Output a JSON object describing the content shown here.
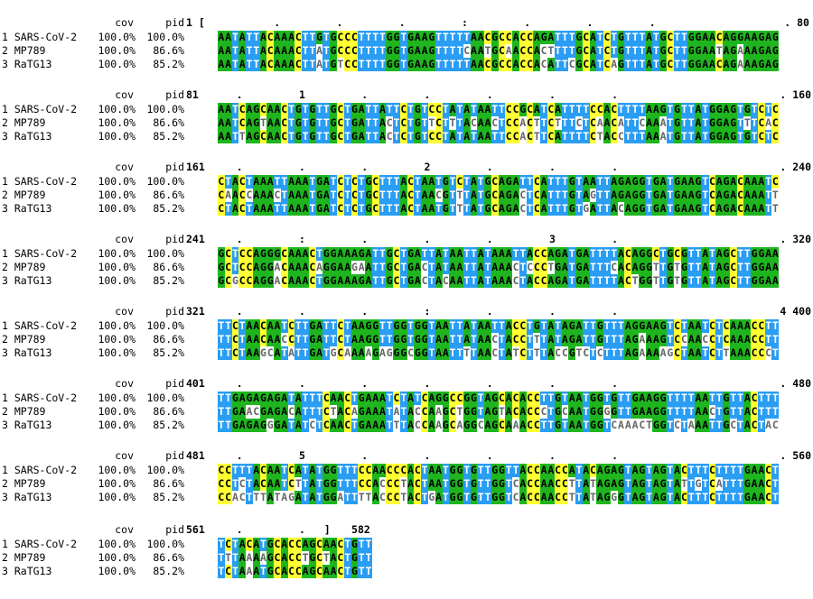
{
  "headers": {
    "cov": "cov",
    "pid": "pid"
  },
  "rows_meta": [
    {
      "label": "1 SARS-CoV-2",
      "cov": "100.0%",
      "pid": "100.0%"
    },
    {
      "label": "2 MP789",
      "cov": "100.0%",
      "pid": "86.6%"
    },
    {
      "label": "3 RaTG13",
      "cov": "100.0%",
      "pid": "85.2%"
    }
  ],
  "blocks": [
    {
      "start": "1 [",
      "ruler": "         .         .         .         :         .         .         .",
      "end": ". 80",
      "seqs": [
        "AATATTACAAACTTGTGCCCTTTTGGTGAAGTTTTTAACGCCACCAGATTTGCATCTGTTTATGCTTGGAACAGGAAGAG",
        "AATATTACAAACTTATGCCCTTTTGGTGAAGTTTTCAATGCAACCACTTTTGCATCTGTTTATGCTTGGAATAGAAAGAG",
        "AATATTACAAACTTATGTCCTTTTGGTGAAGTTTTTAACGCCACCACATTCGCATCAGTTTATGCTTGGAACAGAAAGAG"
      ]
    },
    {
      "start": "81",
      "ruler": "   .         1         .         .         .         .         .",
      "end": ". 160",
      "seqs": [
        "AATCAGCAACTGTGTTGCTGATTATTCTGTCCTATATAATTCCGCATCATTTTCCACTTTTAAGTGTTATGGAGTGTCTC",
        "AATCAGTAACTGTGTTGCTGATTACTCTGTTCTTTACAACTCCACTTCTTTCTCAACATTCAAATGTTATGGAGTTTCAC",
        "AATTAGCAACTGTGTTGCTGATTACTCTGTCCTATATAATTCCACTTCATTTTCTACCTTTAAATGTTATGGAGTGTCTC"
      ]
    },
    {
      "start": "161",
      "ruler": "   .         .         .         2         .         .         .",
      "end": ". 240",
      "seqs": [
        "CTACTAAATTAAATGATCTCTGCTTTACTAATGTCTATGCAGATTCATTTGTAATTAGAGGTGATGAAGTCAGACAAATC",
        "CAACCAAACTAAATGATCTCTGCTTTACTAACGTTTATGCAGACTCATTTGTAGTTAGAGGTGATGAAGTCAGACAAATT",
        "CTACTAAATTAAATGATCTCTGCTTTACTAATGTTTATGCAGACTCATTTGTGATTACAGGTGATGAAGTCAGACAAATT"
      ]
    },
    {
      "start": "241",
      "ruler": "   .         :         .         .         .         3         .",
      "end": ". 320",
      "seqs": [
        "GCTCCAGGGCAAACTGGAAAGATTGCTGATTATAATTATAAATTACCAGATGATTTTACAGGCTGCGTTATAGCTTGGAA",
        "GCTCCAGGACAAACAGGAAGAATTGCTGACTATAATTATAAACTCCCTGATGATTTCACAGGTTGTGTTATAGCTTGGAA",
        "GCGCCAGGACAAACTGGAAAGATTGCTGACTACAATTATAAACTACCAGATGATTTTACTGGTTGTGTTATAGCTTGGAA"
      ]
    },
    {
      "start": "321",
      "ruler": "   .         .         .         :         .         .         .",
      "end": "4 400",
      "seqs": [
        "TTCTAACAATCTTGATTCTAAGGTTGGTGGTAATTATAATTACCTGTATAGATTGTTTAGGAAGTCTAATCTCAAACCTT",
        "TTCTAACAACCTTGATTCTAAGGTTGGTGGTAATTATAACTACCTTTATAGATTGTTTAGAAAGTCCAACCTCAAACCTT",
        "TTCTAAGCATATTGATGCAAAAGAGGGCGGTAATTTTAACTATCTTTACCGTCTCTTTAGAAAAGCTAATCTTAAACCCT"
      ]
    },
    {
      "start": "401",
      "ruler": "   .         .         .         .         .         .         .",
      "end": ". 480",
      "seqs": [
        "TTGAGAGAGATATTTCAACTGAAATCTATCAGGCCGGTAGCACACCTTGTAATGGTGTTGAAGGTTTTAATTGTTACTTT",
        "TTGAACGAGACATTTCTACAGAAATATACCAAGCTGGTAGTACACCCTGCAATGGGGTTGAAGGTTTTAACTGTTACTTT",
        "TTGAGAGGGATATCTCAACTGAAATTTACCAAGCAGGCAGCAAACCTTGTAATGGTCAAACTGGTCTAAATTGCTACTAC"
      ]
    },
    {
      "start": "481",
      "ruler": "   .         5         .         .         .         .         .",
      "end": ". 560",
      "seqs": [
        "CCTTTACAATCATATGGTTTCCAACCCACTAATGGTGTTGGTTACCAACCATACAGAGTAGTAGTACTTTCTTTTGAACT",
        "CCTCTACAATCTTATGGTTTCCACCCTACTAATGGTGTTGGTCACCAACCTTATAGAGTAGTAGTATTGTCATTTGAACT",
        "CCACTTTATAGATATGGATTTTACCCTACTGATGGTGTTGGTCACCAACCTTATAGGGTAGTAGTACTTTCTTTTGAACT"
      ]
    },
    {
      "start": "561",
      "ruler": "   .         .   ]",
      "end": "582",
      "seqs": [
        "TCTACATGCACCAGCAACTGTT",
        "TTTAAAAGCACCTGCTACTGTT",
        "TCTAAATGCACCAGCAACTGTT"
      ]
    }
  ]
}
